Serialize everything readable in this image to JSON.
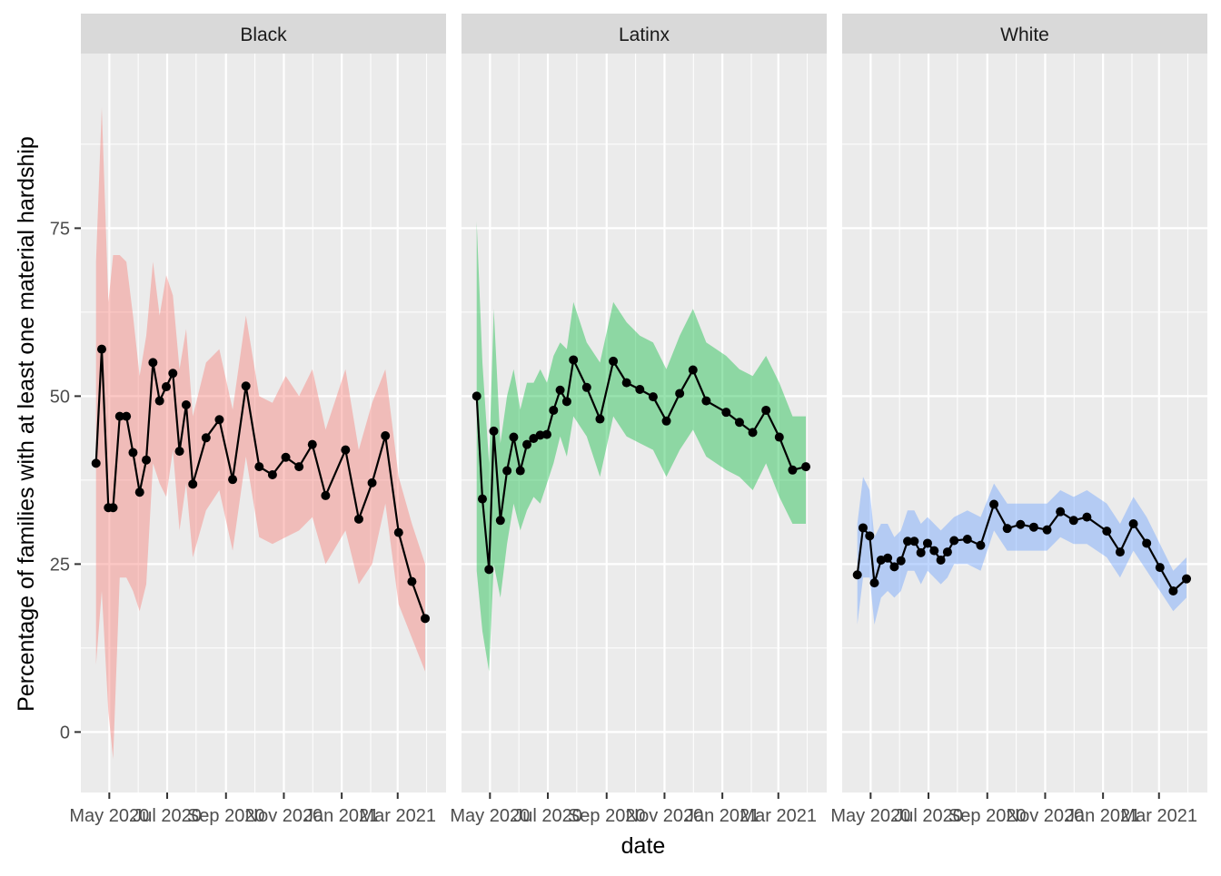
{
  "chart_data": {
    "type": "line",
    "xlabel": "date",
    "ylabel": "Percentage of families with at least one material hardship",
    "x_ticks": [
      "May 2020",
      "Jul 2020",
      "Sep 2020",
      "Nov 2020",
      "Jan 2021",
      "Mar 2021"
    ],
    "x_tick_dates": [
      "2020-05-01",
      "2020-07-01",
      "2020-09-01",
      "2020-11-01",
      "2021-01-01",
      "2021-03-01"
    ],
    "xlim": [
      "2020-04-01",
      "2021-04-21"
    ],
    "y_ticks": [
      "0",
      "25",
      "50",
      "75"
    ],
    "ylim": [
      -9,
      101
    ],
    "grid": true,
    "legend": "none",
    "panels": [
      {
        "name": "Black",
        "fill_color": "#f8766d",
        "points": [
          {
            "date": "2020-04-17",
            "value": 40,
            "lower": 10,
            "upper": 70
          },
          {
            "date": "2020-04-23",
            "value": 57,
            "lower": 21,
            "upper": 93
          },
          {
            "date": "2020-04-30",
            "value": 33.4,
            "lower": 3,
            "upper": 64
          },
          {
            "date": "2020-05-05",
            "value": 33.4,
            "lower": -4,
            "upper": 71
          },
          {
            "date": "2020-05-12",
            "value": 47,
            "lower": 23,
            "upper": 71
          },
          {
            "date": "2020-05-19",
            "value": 47,
            "lower": 23,
            "upper": 70
          },
          {
            "date": "2020-05-26",
            "value": 41.6,
            "lower": 21,
            "upper": 62
          },
          {
            "date": "2020-06-02",
            "value": 35.7,
            "lower": 18,
            "upper": 53
          },
          {
            "date": "2020-06-09",
            "value": 40.5,
            "lower": 22,
            "upper": 59
          },
          {
            "date": "2020-06-16",
            "value": 55,
            "lower": 40,
            "upper": 70
          },
          {
            "date": "2020-06-23",
            "value": 49.3,
            "lower": 37,
            "upper": 62
          },
          {
            "date": "2020-06-30",
            "value": 51.4,
            "lower": 35,
            "upper": 68
          },
          {
            "date": "2020-07-07",
            "value": 53.4,
            "lower": 42,
            "upper": 65
          },
          {
            "date": "2020-07-14",
            "value": 41.8,
            "lower": 30,
            "upper": 54
          },
          {
            "date": "2020-07-21",
            "value": 48.7,
            "lower": 37,
            "upper": 60
          },
          {
            "date": "2020-07-28",
            "value": 36.9,
            "lower": 26,
            "upper": 47
          },
          {
            "date": "2020-08-11",
            "value": 43.8,
            "lower": 33,
            "upper": 55
          },
          {
            "date": "2020-08-25",
            "value": 46.5,
            "lower": 36,
            "upper": 57
          },
          {
            "date": "2020-09-08",
            "value": 37.6,
            "lower": 27,
            "upper": 48
          },
          {
            "date": "2020-09-22",
            "value": 51.5,
            "lower": 41,
            "upper": 62
          },
          {
            "date": "2020-10-06",
            "value": 39.5,
            "lower": 29,
            "upper": 50
          },
          {
            "date": "2020-10-20",
            "value": 38.3,
            "lower": 28,
            "upper": 49
          },
          {
            "date": "2020-11-03",
            "value": 40.9,
            "lower": 29,
            "upper": 53
          },
          {
            "date": "2020-11-17",
            "value": 39.5,
            "lower": 30,
            "upper": 50
          },
          {
            "date": "2020-12-01",
            "value": 42.8,
            "lower": 32,
            "upper": 54
          },
          {
            "date": "2020-12-15",
            "value": 35.2,
            "lower": 25,
            "upper": 45
          },
          {
            "date": "2021-01-05",
            "value": 42,
            "lower": 30,
            "upper": 54
          },
          {
            "date": "2021-01-19",
            "value": 31.7,
            "lower": 22,
            "upper": 42
          },
          {
            "date": "2021-02-02",
            "value": 37.1,
            "lower": 25,
            "upper": 49
          },
          {
            "date": "2021-02-16",
            "value": 44.1,
            "lower": 34,
            "upper": 54
          },
          {
            "date": "2021-03-02",
            "value": 29.7,
            "lower": 19,
            "upper": 38
          },
          {
            "date": "2021-03-16",
            "value": 22.4,
            "lower": 14,
            "upper": 31
          },
          {
            "date": "2021-03-30",
            "value": 16.9,
            "lower": 9,
            "upper": 25
          }
        ]
      },
      {
        "name": "Latinx",
        "fill_color": "#00ba38",
        "points": [
          {
            "date": "2020-04-17",
            "value": 50,
            "lower": 24,
            "upper": 76
          },
          {
            "date": "2020-04-23",
            "value": 34.7,
            "lower": 15,
            "upper": 55
          },
          {
            "date": "2020-04-30",
            "value": 24.2,
            "lower": 9,
            "upper": 40
          },
          {
            "date": "2020-05-05",
            "value": 44.8,
            "lower": 25,
            "upper": 63
          },
          {
            "date": "2020-05-12",
            "value": 31.5,
            "lower": 20,
            "upper": 43
          },
          {
            "date": "2020-05-19",
            "value": 38.9,
            "lower": 28,
            "upper": 50
          },
          {
            "date": "2020-05-26",
            "value": 43.9,
            "lower": 34,
            "upper": 54
          },
          {
            "date": "2020-06-02",
            "value": 38.9,
            "lower": 30,
            "upper": 48
          },
          {
            "date": "2020-06-09",
            "value": 42.8,
            "lower": 33,
            "upper": 52
          },
          {
            "date": "2020-06-16",
            "value": 43.7,
            "lower": 35,
            "upper": 52
          },
          {
            "date": "2020-06-23",
            "value": 44.2,
            "lower": 34,
            "upper": 54
          },
          {
            "date": "2020-06-30",
            "value": 44.3,
            "lower": 37,
            "upper": 52
          },
          {
            "date": "2020-07-07",
            "value": 47.9,
            "lower": 40,
            "upper": 56
          },
          {
            "date": "2020-07-14",
            "value": 50.9,
            "lower": 44,
            "upper": 58
          },
          {
            "date": "2020-07-21",
            "value": 49.2,
            "lower": 41,
            "upper": 57
          },
          {
            "date": "2020-07-28",
            "value": 55.4,
            "lower": 47,
            "upper": 64
          },
          {
            "date": "2020-08-11",
            "value": 51.3,
            "lower": 44,
            "upper": 58
          },
          {
            "date": "2020-08-25",
            "value": 46.6,
            "lower": 38,
            "upper": 55
          },
          {
            "date": "2020-09-08",
            "value": 55.2,
            "lower": 47,
            "upper": 64
          },
          {
            "date": "2020-09-22",
            "value": 52,
            "lower": 44,
            "upper": 61
          },
          {
            "date": "2020-10-06",
            "value": 51,
            "lower": 43,
            "upper": 59
          },
          {
            "date": "2020-10-20",
            "value": 49.9,
            "lower": 42,
            "upper": 58
          },
          {
            "date": "2020-11-03",
            "value": 46.3,
            "lower": 38,
            "upper": 54
          },
          {
            "date": "2020-11-17",
            "value": 50.4,
            "lower": 42,
            "upper": 59
          },
          {
            "date": "2020-12-01",
            "value": 53.9,
            "lower": 45,
            "upper": 63
          },
          {
            "date": "2020-12-15",
            "value": 49.3,
            "lower": 41,
            "upper": 58
          },
          {
            "date": "2021-01-05",
            "value": 47.6,
            "lower": 39,
            "upper": 56
          },
          {
            "date": "2021-01-19",
            "value": 46.1,
            "lower": 38,
            "upper": 54
          },
          {
            "date": "2021-02-02",
            "value": 44.6,
            "lower": 36,
            "upper": 53
          },
          {
            "date": "2021-02-16",
            "value": 47.9,
            "lower": 40,
            "upper": 56
          },
          {
            "date": "2021-03-02",
            "value": 43.9,
            "lower": 35,
            "upper": 52
          },
          {
            "date": "2021-03-16",
            "value": 39,
            "lower": 31,
            "upper": 47
          },
          {
            "date": "2021-03-30",
            "value": 39.5,
            "lower": 31,
            "upper": 47
          }
        ]
      },
      {
        "name": "White",
        "fill_color": "#619cff",
        "points": [
          {
            "date": "2020-04-17",
            "value": 23.4,
            "lower": 16,
            "upper": 31
          },
          {
            "date": "2020-04-23",
            "value": 30.4,
            "lower": 23,
            "upper": 38
          },
          {
            "date": "2020-04-30",
            "value": 29.2,
            "lower": 23,
            "upper": 36
          },
          {
            "date": "2020-05-05",
            "value": 22.2,
            "lower": 16,
            "upper": 29
          },
          {
            "date": "2020-05-12",
            "value": 25.6,
            "lower": 20,
            "upper": 31
          },
          {
            "date": "2020-05-19",
            "value": 25.9,
            "lower": 21,
            "upper": 31
          },
          {
            "date": "2020-05-26",
            "value": 24.6,
            "lower": 20,
            "upper": 29
          },
          {
            "date": "2020-06-02",
            "value": 25.5,
            "lower": 21,
            "upper": 30
          },
          {
            "date": "2020-06-09",
            "value": 28.4,
            "lower": 24,
            "upper": 33
          },
          {
            "date": "2020-06-16",
            "value": 28.4,
            "lower": 24,
            "upper": 33
          },
          {
            "date": "2020-06-23",
            "value": 26.7,
            "lower": 22,
            "upper": 31
          },
          {
            "date": "2020-06-30",
            "value": 28.1,
            "lower": 24,
            "upper": 32
          },
          {
            "date": "2020-07-07",
            "value": 27,
            "lower": 23,
            "upper": 31
          },
          {
            "date": "2020-07-14",
            "value": 25.6,
            "lower": 22,
            "upper": 30
          },
          {
            "date": "2020-07-21",
            "value": 26.8,
            "lower": 23,
            "upper": 31
          },
          {
            "date": "2020-07-28",
            "value": 28.5,
            "lower": 25,
            "upper": 32
          },
          {
            "date": "2020-08-11",
            "value": 28.7,
            "lower": 25,
            "upper": 33
          },
          {
            "date": "2020-08-25",
            "value": 27.8,
            "lower": 24,
            "upper": 32
          },
          {
            "date": "2020-09-08",
            "value": 33.9,
            "lower": 30,
            "upper": 37
          },
          {
            "date": "2020-09-22",
            "value": 30.3,
            "lower": 27,
            "upper": 34
          },
          {
            "date": "2020-10-06",
            "value": 30.9,
            "lower": 27,
            "upper": 34
          },
          {
            "date": "2020-10-20",
            "value": 30.5,
            "lower": 27,
            "upper": 34
          },
          {
            "date": "2020-11-03",
            "value": 30.1,
            "lower": 27,
            "upper": 34
          },
          {
            "date": "2020-11-17",
            "value": 32.8,
            "lower": 29,
            "upper": 36
          },
          {
            "date": "2020-12-01",
            "value": 31.5,
            "lower": 28,
            "upper": 35
          },
          {
            "date": "2020-12-15",
            "value": 32,
            "lower": 28,
            "upper": 36
          },
          {
            "date": "2021-01-05",
            "value": 29.9,
            "lower": 26,
            "upper": 34
          },
          {
            "date": "2021-01-19",
            "value": 26.8,
            "lower": 23,
            "upper": 31
          },
          {
            "date": "2021-02-02",
            "value": 31,
            "lower": 27,
            "upper": 35
          },
          {
            "date": "2021-02-16",
            "value": 28.1,
            "lower": 24,
            "upper": 32
          },
          {
            "date": "2021-03-02",
            "value": 24.5,
            "lower": 21,
            "upper": 28
          },
          {
            "date": "2021-03-16",
            "value": 21,
            "lower": 18,
            "upper": 24
          },
          {
            "date": "2021-03-30",
            "value": 22.8,
            "lower": 20,
            "upper": 26
          }
        ]
      }
    ]
  }
}
